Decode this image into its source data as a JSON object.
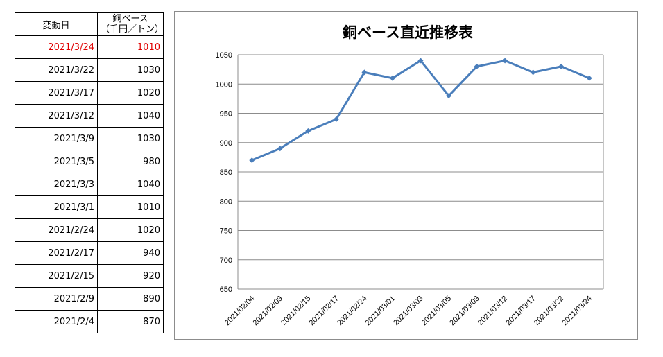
{
  "table": {
    "header_date": "変動日",
    "header_price_line1": "銅ベース",
    "header_price_line2": "（千円／トン）",
    "rows": [
      {
        "date": "2021/3/24",
        "price": "1010",
        "highlight": true
      },
      {
        "date": "2021/3/22",
        "price": "1030",
        "highlight": false
      },
      {
        "date": "2021/3/17",
        "price": "1020",
        "highlight": false
      },
      {
        "date": "2021/3/12",
        "price": "1040",
        "highlight": false
      },
      {
        "date": "2021/3/9",
        "price": "1030",
        "highlight": false
      },
      {
        "date": "2021/3/5",
        "price": "980",
        "highlight": false
      },
      {
        "date": "2021/3/3",
        "price": "1040",
        "highlight": false
      },
      {
        "date": "2021/3/1",
        "price": "1010",
        "highlight": false
      },
      {
        "date": "2021/2/24",
        "price": "1020",
        "highlight": false
      },
      {
        "date": "2021/2/17",
        "price": "940",
        "highlight": false
      },
      {
        "date": "2021/2/15",
        "price": "920",
        "highlight": false
      },
      {
        "date": "2021/2/9",
        "price": "890",
        "highlight": false
      },
      {
        "date": "2021/2/4",
        "price": "870",
        "highlight": false
      }
    ],
    "highlight_color": "#e00000"
  },
  "chart_data": {
    "type": "line",
    "title": "銅ベース直近推移表",
    "xlabel": "",
    "ylabel": "",
    "categories": [
      "2021/02/04",
      "2021/02/09",
      "2021/02/15",
      "2021/02/17",
      "2021/02/24",
      "2021/03/01",
      "2021/03/03",
      "2021/03/05",
      "2021/03/09",
      "2021/03/12",
      "2021/03/17",
      "2021/03/22",
      "2021/03/24"
    ],
    "series": [
      {
        "values": [
          870,
          890,
          920,
          940,
          1020,
          1010,
          1040,
          980,
          1030,
          1040,
          1020,
          1030,
          1010
        ],
        "color": "#4a7ebb"
      }
    ],
    "ylim": [
      650,
      1050
    ],
    "yticks": [
      650,
      700,
      750,
      800,
      850,
      900,
      950,
      1000,
      1050
    ],
    "grid": true,
    "legend": "none",
    "marker": "diamond"
  }
}
